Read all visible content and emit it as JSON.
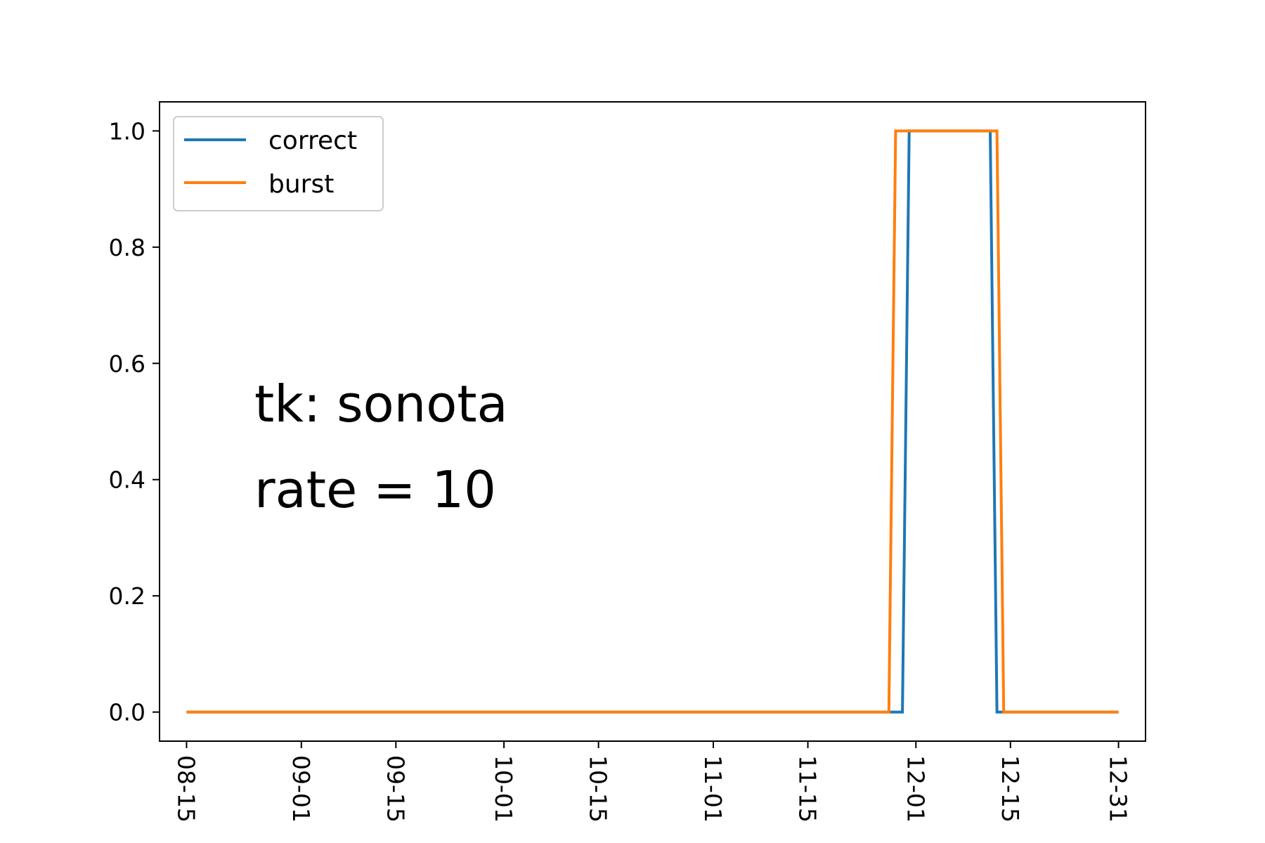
{
  "chart_data": {
    "type": "line",
    "title": "",
    "xlabel": "",
    "ylabel": "",
    "x_axis_type": "date",
    "year": 2000,
    "xlim": [
      "08-11",
      "01-04"
    ],
    "ylim": [
      -0.05,
      1.05
    ],
    "x_ticks": [
      "08-15",
      "09-01",
      "09-15",
      "10-01",
      "10-15",
      "11-01",
      "11-15",
      "12-01",
      "12-15",
      "12-31"
    ],
    "y_ticks": [
      0.0,
      0.2,
      0.4,
      0.6,
      0.8,
      1.0
    ],
    "y_tick_labels": [
      "0.0",
      "0.2",
      "0.4",
      "0.6",
      "0.8",
      "1.0"
    ],
    "grid": false,
    "legend_position": "top-left",
    "series": [
      {
        "name": "correct",
        "color": "#1f77b4",
        "points": [
          {
            "x": "08-15",
            "y": 0
          },
          {
            "x": "11-29",
            "y": 0
          },
          {
            "x": "11-30",
            "y": 1
          },
          {
            "x": "12-12",
            "y": 1
          },
          {
            "x": "12-13",
            "y": 0
          },
          {
            "x": "12-31",
            "y": 0
          }
        ]
      },
      {
        "name": "burst",
        "color": "#ff7f0e",
        "points": [
          {
            "x": "08-15",
            "y": 0
          },
          {
            "x": "11-27",
            "y": 0
          },
          {
            "x": "11-28",
            "y": 1
          },
          {
            "x": "12-13",
            "y": 1
          },
          {
            "x": "12-14",
            "y": 0
          },
          {
            "x": "12-31",
            "y": 0
          }
        ]
      }
    ],
    "annotations": [
      "tk: sonota",
      "rate = 10"
    ]
  }
}
